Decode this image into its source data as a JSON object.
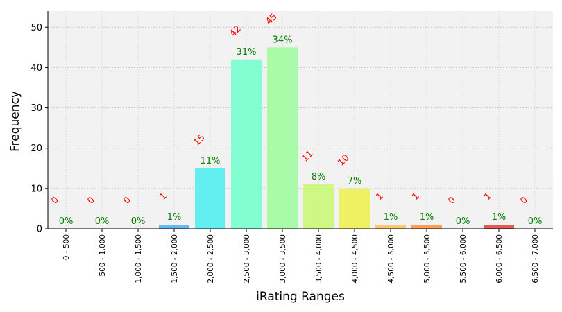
{
  "chart_data": {
    "type": "bar",
    "xlabel": "iRating Ranges",
    "ylabel": "Frequency",
    "ylim": [
      0,
      54
    ],
    "yticks": [
      0,
      10,
      20,
      30,
      40,
      50
    ],
    "grid": true,
    "categories": [
      "0 - 500",
      "500 - 1,000",
      "1,000 - 1,500",
      "1,500 - 2,000",
      "2,000 - 2,500",
      "2,500 - 3,000",
      "3,000 - 3,500",
      "3,500 - 4,000",
      "4,000 - 4,500",
      "4,500 - 5,000",
      "5,000 - 5,500",
      "5,500 - 6,000",
      "6,000 - 6,500",
      "6,500 - 7,000"
    ],
    "values": [
      0,
      0,
      0,
      1,
      15,
      42,
      45,
      11,
      10,
      1,
      1,
      0,
      1,
      0
    ],
    "percent_labels": [
      "0%",
      "0%",
      "0%",
      "1%",
      "11%",
      "31%",
      "34%",
      "8%",
      "7%",
      "1%",
      "1%",
      "0%",
      "1%",
      "0%"
    ],
    "count_labels": [
      "0",
      "0",
      "0",
      "1",
      "15",
      "42",
      "45",
      "11",
      "10",
      "1",
      "1",
      "0",
      "1",
      "0"
    ],
    "colors": [
      "#8000ff",
      "#5a2ffd",
      "#3c5cf8",
      "#4aaef5",
      "#4aeeee",
      "#70ffcc",
      "#9cfd9c",
      "#c8f870",
      "#f0f04a",
      "#ffc05a",
      "#ff9040",
      "#ff5a30",
      "#e04040",
      "#ff0000"
    ],
    "background": "#f2f2f2"
  }
}
